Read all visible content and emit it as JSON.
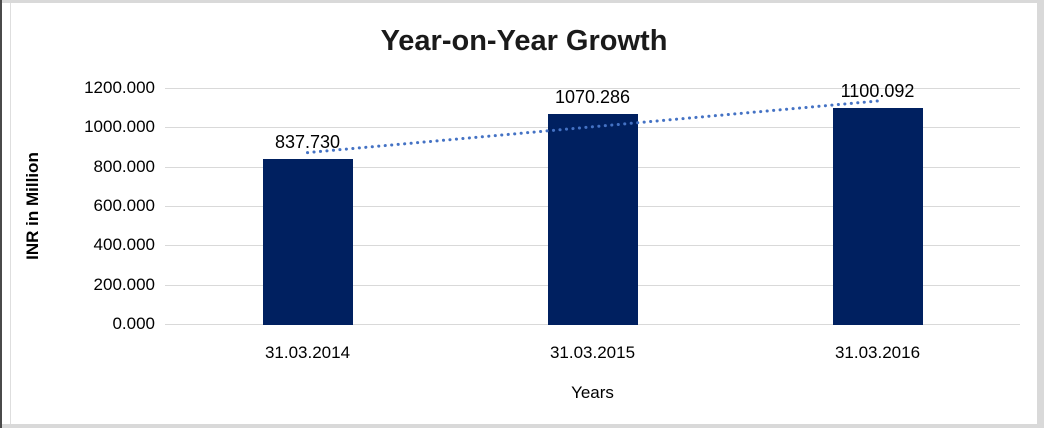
{
  "chart_data": {
    "type": "bar",
    "title": "Year-on-Year Growth",
    "xlabel": "Years",
    "ylabel": "INR in Million",
    "categories": [
      "31.03.2014",
      "31.03.2015",
      "31.03.2016"
    ],
    "values": [
      837.73,
      1070.286,
      1100.092
    ],
    "data_labels": [
      "837.730",
      "1070.286",
      "1100.092"
    ],
    "ylim": [
      0,
      1200
    ],
    "ytick_step": 200,
    "ytick_labels": [
      "1200.000",
      "1000.000",
      "800.000",
      "600.000",
      "400.000",
      "200.000",
      "0.000"
    ],
    "grid": true,
    "legend_position": "none",
    "trendline": {
      "type": "linear",
      "style": "dotted"
    }
  },
  "colors": {
    "bar": "#002060",
    "trendline": "#4472C4",
    "gridline": "#d9d9d9",
    "title_text": "#1a1a1a",
    "axis_text": "#000000",
    "page_edge": "#d9d9d9",
    "left_border": "#4a4a4a"
  }
}
